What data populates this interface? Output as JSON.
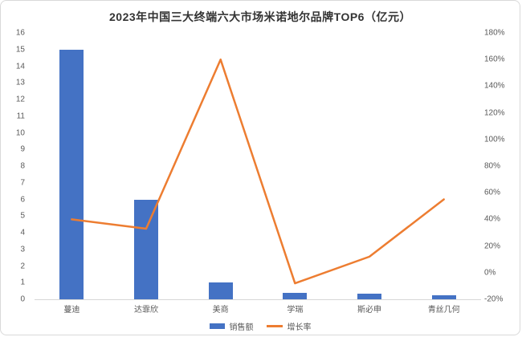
{
  "header": {
    "title": "2023年中国三大终端六大市场米诺地尔品牌TOP6（亿元）"
  },
  "chart_data": {
    "type": "combo-bar-line",
    "title": "2023年中国三大终端六大市场米诺地尔品牌TOP6（亿元）",
    "categories": [
      "蔓迪",
      "达霏欣",
      "美商",
      "学瑞",
      "斯必申",
      "青丝几何"
    ],
    "series": [
      {
        "name": "销售额",
        "type": "bar",
        "axis": "left",
        "unit": "亿元",
        "color": "#4472C4",
        "values": [
          15,
          6,
          1,
          0.4,
          0.35,
          0.25
        ]
      },
      {
        "name": "增长率",
        "type": "line",
        "axis": "right",
        "unit": "%",
        "color": "#ED7D31",
        "values": [
          40,
          33,
          160,
          -8,
          12,
          55
        ]
      }
    ],
    "left_axis": {
      "min": 0,
      "max": 16,
      "step": 1,
      "ticks": [
        16,
        15,
        14,
        13,
        12,
        11,
        10,
        9,
        8,
        7,
        6,
        5,
        4,
        3,
        2,
        1,
        0
      ]
    },
    "right_axis": {
      "min": -20,
      "max": 180,
      "step": 20,
      "suffix": "%",
      "ticks": [
        "180%",
        "160%",
        "140%",
        "120%",
        "100%",
        "80%",
        "60%",
        "40%",
        "20%",
        "0%",
        "-20%"
      ]
    },
    "grid": false,
    "legend_position": "bottom"
  },
  "colors": {
    "bar": "#4472C4",
    "line": "#ED7D31",
    "axis_text": "#595959",
    "baseline": "#d6d6d6",
    "card_border": "#d9d9d9",
    "title_text": "#333333"
  }
}
